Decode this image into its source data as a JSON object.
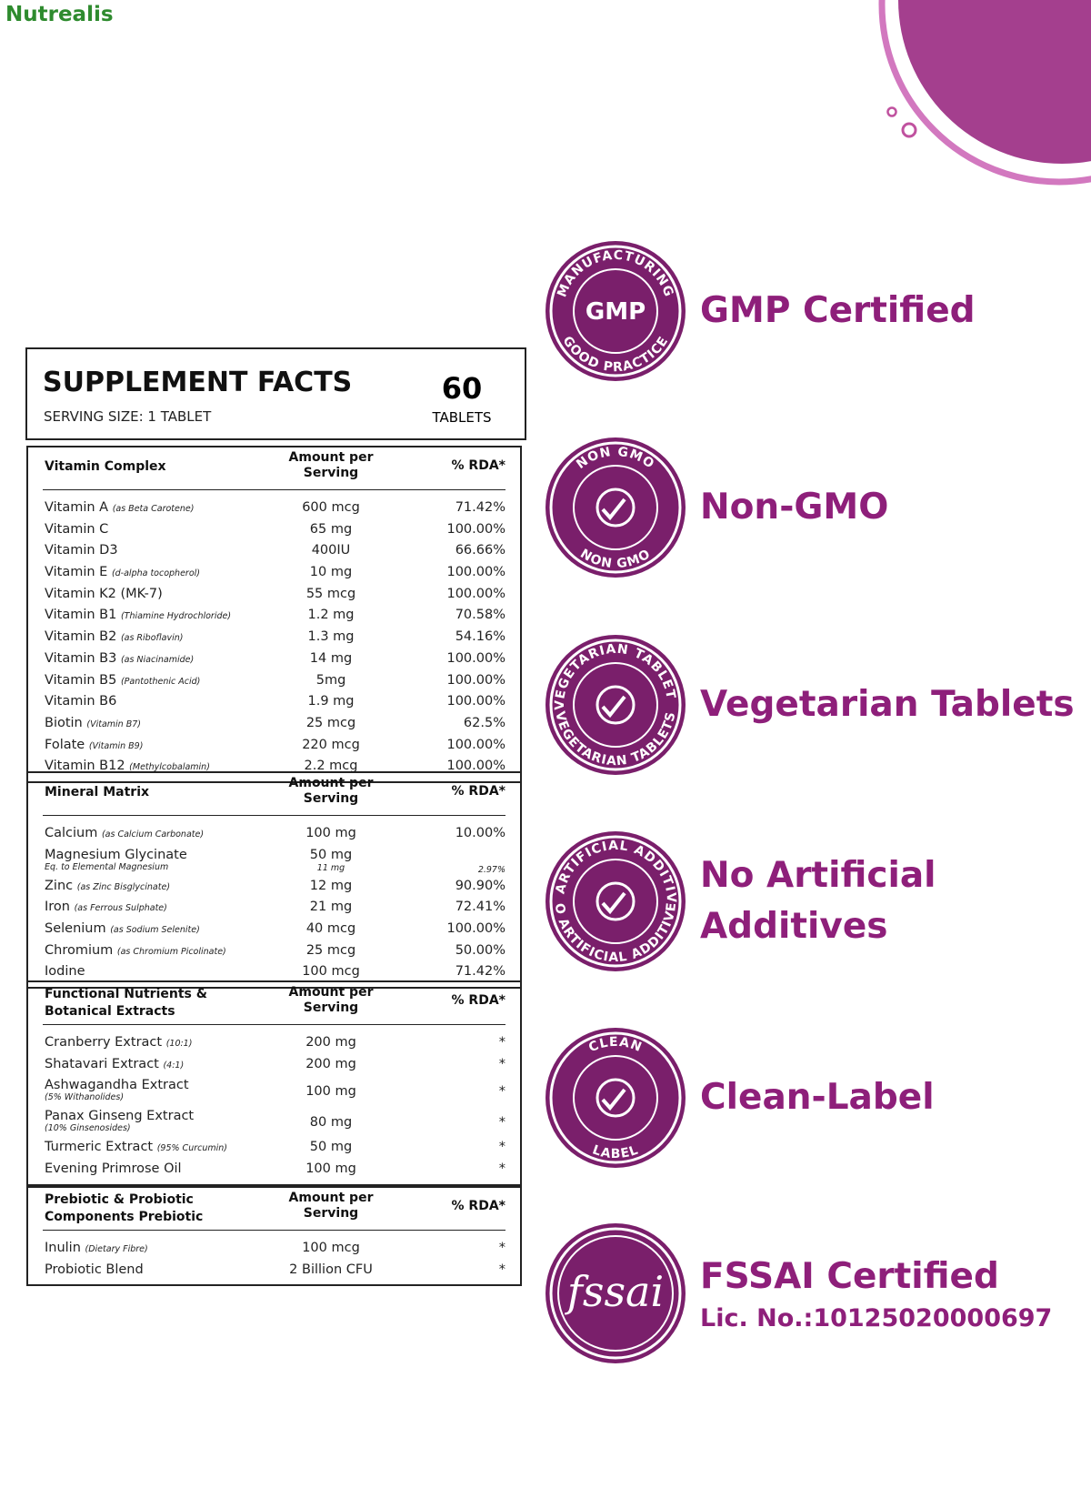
{
  "logo": "Nutrealis",
  "facts": {
    "title": "SUPPLEMENT FACTS",
    "serving_size": "SERVING SIZE:  1 TABLET",
    "count": "60",
    "count_unit": "TABLETS",
    "sections": [
      {
        "name": "Vitamin Complex",
        "amount_header": "Amount per Serving",
        "rda_header": "% RDA*",
        "rows": [
          {
            "name": "Vitamin A",
            "note": "(as Beta Carotene)",
            "amount": "600 mcg",
            "rda": "71.42%"
          },
          {
            "name": "Vitamin C",
            "amount": "65 mg",
            "rda": "100.00%"
          },
          {
            "name": "Vitamin D3",
            "amount": "400IU",
            "rda": "66.66%"
          },
          {
            "name": "Vitamin E",
            "note": "(d-alpha tocopherol)",
            "amount": "10 mg",
            "rda": "100.00%"
          },
          {
            "name": "Vitamin K2 (MK-7)",
            "amount": "55 mcg",
            "rda": "100.00%"
          },
          {
            "name": "Vitamin B1",
            "note": "(Thiamine Hydrochloride)",
            "amount": "1.2 mg",
            "rda": "70.58%"
          },
          {
            "name": "Vitamin B2",
            "note": "(as Riboflavin)",
            "amount": "1.3 mg",
            "rda": "54.16%"
          },
          {
            "name": "Vitamin B3",
            "note": "(as Niacinamide)",
            "amount": "14 mg",
            "rda": "100.00%"
          },
          {
            "name": "Vitamin B5",
            "note": "(Pantothenic Acid)",
            "amount": "5mg",
            "rda": "100.00%"
          },
          {
            "name": "Vitamin B6",
            "amount": "1.9 mg",
            "rda": "100.00%"
          },
          {
            "name": "Biotin",
            "note": "(Vitamin B7)",
            "amount": "25 mcg",
            "rda": "62.5%"
          },
          {
            "name": "Folate",
            "note": "(Vitamin B9)",
            "amount": "220 mcg",
            "rda": "100.00%"
          },
          {
            "name": "Vitamin B12",
            "note": "(Methylcobalamin)",
            "amount": "2.2 mcg",
            "rda": "100.00%"
          }
        ]
      },
      {
        "name": "Mineral Matrix",
        "amount_header": "Amount per Serving",
        "rda_header": "% RDA*",
        "rows": [
          {
            "name": "Calcium",
            "note": "(as Calcium Carbonate)",
            "amount": "100 mg",
            "rda": "10.00%"
          },
          {
            "name": "Magnesium Glycinate",
            "sub": "Eq. to Elemental Magnesium",
            "amount": "50 mg",
            "sub_amount": "11 mg",
            "rda": "2.97%"
          },
          {
            "name": "Zinc",
            "note": "(as Zinc Bisglycinate)",
            "amount": "12 mg",
            "rda": "90.90%"
          },
          {
            "name": "Iron",
            "note": "(as Ferrous Sulphate)",
            "amount": "21 mg",
            "rda": "72.41%"
          },
          {
            "name": "Selenium",
            "note": "(as Sodium Selenite)",
            "amount": "40 mcg",
            "rda": "100.00%"
          },
          {
            "name": "Chromium",
            "note": "(as Chromium Picolinate)",
            "amount": "25 mcg",
            "rda": "50.00%"
          },
          {
            "name": "Iodine",
            "amount": "100 mcg",
            "rda": "71.42%"
          }
        ]
      },
      {
        "name": "Functional Nutrients & Botanical Extracts",
        "amount_header": "Amount per Serving",
        "rda_header": "% RDA*",
        "rows": [
          {
            "name": "Cranberry Extract",
            "note": "(10:1)",
            "amount": "200 mg",
            "rda": "*"
          },
          {
            "name": "Shatavari Extract",
            "note": "(4:1)",
            "amount": "200 mg",
            "rda": "*"
          },
          {
            "name": "Ashwagandha Extract",
            "sub": "(5% Withanolides)",
            "amount": "100 mg",
            "rda": "*"
          },
          {
            "name": "Panax Ginseng Extract",
            "sub": "(10% Ginsenosides)",
            "amount": "80 mg",
            "rda": "*"
          },
          {
            "name": "Turmeric Extract",
            "note": "(95% Curcumin)",
            "amount": "50 mg",
            "rda": "*"
          },
          {
            "name": "Evening Primrose Oil",
            "amount": "100 mg",
            "rda": "*"
          }
        ]
      },
      {
        "name": "Prebiotic & Probiotic Components Prebiotic",
        "amount_header": "Amount per Serving",
        "rda_header": "% RDA*",
        "rows": [
          {
            "name": "Inulin",
            "note": "(Dietary Fibre)",
            "amount": "100 mcg",
            "rda": "*"
          },
          {
            "name": "Probiotic Blend",
            "amount": "2 Billion CFU",
            "rda": "*"
          }
        ]
      }
    ]
  },
  "badges": [
    {
      "ring_top": "MANUFACTURING",
      "ring_bottom": "GOOD PRACTICE",
      "center": "GMP",
      "label": [
        "GMP Certified"
      ]
    },
    {
      "ring_top": "NON GMO",
      "ring_bottom": "NON GMO",
      "label": [
        "Non-GMO"
      ]
    },
    {
      "ring_top": "VEGETARIAN TABLETS",
      "ring_bottom": "VEGETARIAN TABLETS",
      "label": [
        "Vegetarian Tablets"
      ]
    },
    {
      "ring_top": "NO ARTIFICIAL ADDITIVES",
      "ring_bottom": "NO ARTIFICIAL ADDITIVES",
      "label": [
        "No Artificial",
        "Additives"
      ]
    },
    {
      "ring_top": "CLEAN",
      "ring_bottom": "LABEL",
      "label": [
        "Clean-Label"
      ]
    },
    {
      "center": "fssai",
      "label": [
        "FSSAI Certified",
        "Lic. No.:10125020000697"
      ]
    }
  ]
}
